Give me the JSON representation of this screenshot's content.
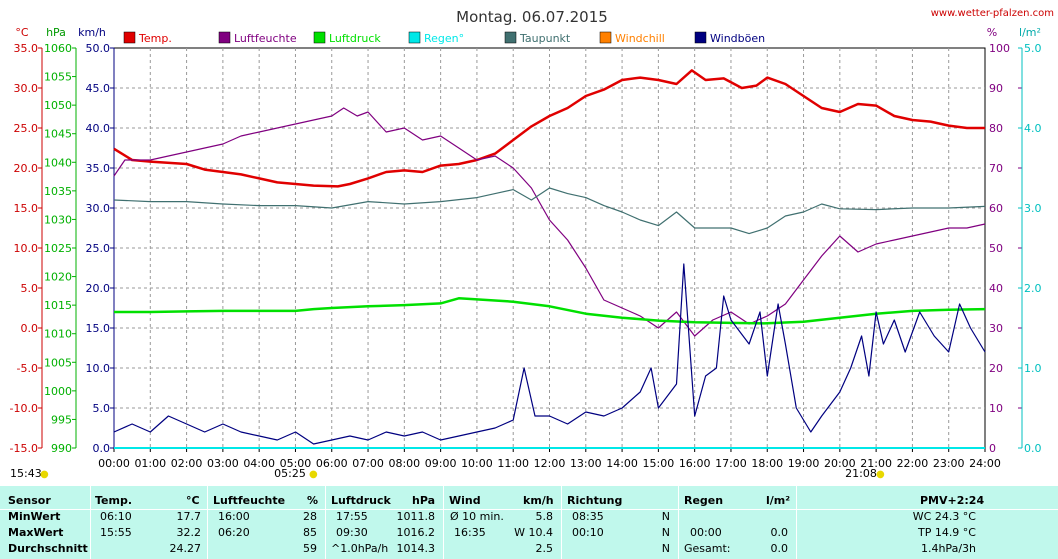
{
  "header": {
    "title": "Montag. 06.07.2015",
    "site": "www.wetter-pfalzen.com"
  },
  "units": {
    "temp": "°C",
    "press": "hPa",
    "wind": "km/h",
    "hum": "%",
    "rain": "l/m²"
  },
  "legend": [
    {
      "label": "Temp.",
      "color": "#e00000"
    },
    {
      "label": "Luftfeuchte",
      "color": "#800080"
    },
    {
      "label": "Luftdruck",
      "color": "#00e000"
    },
    {
      "label": "Regen°",
      "color": "#00e8e8"
    },
    {
      "label": "Taupunkt",
      "color": "#407070"
    },
    {
      "label": "Windchill",
      "color": "#ff8000"
    },
    {
      "label": "Windböen",
      "color": "#000080"
    }
  ],
  "axes": {
    "temp_ticks": [
      "35.0",
      "30.0",
      "25.0",
      "20.0",
      "15.0",
      "10.0",
      "5.0",
      "0.0",
      "-5.0",
      "-10.0",
      "-15.0"
    ],
    "press_ticks": [
      "1060",
      "1055",
      "1050",
      "1045",
      "1040",
      "1035",
      "1030",
      "1025",
      "1020",
      "1015",
      "1010",
      "1005",
      "1000",
      "995",
      "990"
    ],
    "wind_ticks": [
      "50.0",
      "45.0",
      "40.0",
      "35.0",
      "30.0",
      "25.0",
      "20.0",
      "15.0",
      "10.0",
      "5.0",
      "0.0"
    ],
    "hum_ticks": [
      "100",
      "90",
      "80",
      "70",
      "60",
      "50",
      "40",
      "30",
      "20",
      "10",
      "0"
    ],
    "rain_ticks": [
      "5.0",
      "4.0",
      "3.0",
      "2.0",
      "1.0",
      "0.0"
    ],
    "time_ticks": [
      "00:00",
      "01:00",
      "02:00",
      "03:00",
      "04:00",
      "05:00",
      "06:00",
      "07:00",
      "08:00",
      "09:00",
      "10:00",
      "11:00",
      "12:00",
      "13:00",
      "14:00",
      "15:00",
      "16:00",
      "17:00",
      "18:00",
      "19:00",
      "20:00",
      "21:00",
      "22:00",
      "23:00",
      "24:00"
    ]
  },
  "markers": {
    "sunrise": "05:25",
    "sunset": "21:08",
    "left_time": "15:43"
  },
  "stats": {
    "headers": {
      "sensor": "Sensor",
      "temp": "Temp.",
      "temp_unit": "°C",
      "hum": "Luftfeuchte",
      "hum_unit": "%",
      "press": "Luftdruck",
      "press_unit": "hPa",
      "wind": "Wind",
      "wind_unit": "km/h",
      "dir": "Richtung",
      "rain": "Regen",
      "rain_unit": "l/m²",
      "pmv": "PMV+2:24"
    },
    "rows": [
      {
        "label": "MinWert",
        "temp_t": "06:10",
        "temp_v": "17.7",
        "hum_t": "16:00",
        "hum_v": "28",
        "press_t": "17:55",
        "press_v": "1011.8",
        "wind_t": "Ø 10 min.",
        "wind_v": "5.8",
        "dir_t": "08:35",
        "dir_v": "N",
        "rain_t": "",
        "rain_v": "",
        "extra": "WC 24.3 °C"
      },
      {
        "label": "MaxWert",
        "temp_t": "15:55",
        "temp_v": "32.2",
        "hum_t": "06:20",
        "hum_v": "85",
        "press_t": "09:30",
        "press_v": "1016.2",
        "wind_t": "16:35",
        "wind_v": "W 10.4",
        "dir_t": "00:10",
        "dir_v": "N",
        "rain_t": "00:00",
        "rain_v": "0.0",
        "extra": "TP 14.9 °C"
      },
      {
        "label": "Durchschnitt",
        "temp_t": "",
        "temp_v": "24.27",
        "hum_t": "",
        "hum_v": "59",
        "press_t": "^1.0hPa/h",
        "press_v": "1014.3",
        "wind_t": "",
        "wind_v": "2.5",
        "dir_t": "",
        "dir_v": "N",
        "rain_t": "Gesamt:",
        "rain_v": "0.0",
        "extra": "1.4hPa/3h"
      }
    ]
  },
  "chart_data": {
    "type": "line",
    "x_unit": "hour of day",
    "xlim": [
      0,
      24
    ],
    "series": [
      {
        "name": "Temp.",
        "axis": "°C",
        "ylim": [
          -15,
          35
        ],
        "color": "#e00000",
        "points": [
          [
            0,
            22.4
          ],
          [
            0.5,
            21
          ],
          [
            1,
            20.8
          ],
          [
            2,
            20.5
          ],
          [
            2.5,
            19.8
          ],
          [
            3,
            19.5
          ],
          [
            3.5,
            19.2
          ],
          [
            4,
            18.7
          ],
          [
            4.5,
            18.2
          ],
          [
            5,
            18
          ],
          [
            5.5,
            17.8
          ],
          [
            6.17,
            17.7
          ],
          [
            6.5,
            18
          ],
          [
            7,
            18.7
          ],
          [
            7.5,
            19.5
          ],
          [
            8,
            19.7
          ],
          [
            8.5,
            19.5
          ],
          [
            9,
            20.3
          ],
          [
            9.5,
            20.5
          ],
          [
            10,
            21
          ],
          [
            10.5,
            21.8
          ],
          [
            11,
            23.5
          ],
          [
            11.5,
            25.2
          ],
          [
            12,
            26.5
          ],
          [
            12.5,
            27.5
          ],
          [
            13,
            29
          ],
          [
            13.5,
            29.8
          ],
          [
            14,
            31
          ],
          [
            14.5,
            31.3
          ],
          [
            15,
            31
          ],
          [
            15.5,
            30.5
          ],
          [
            15.92,
            32.2
          ],
          [
            16.3,
            31
          ],
          [
            16.8,
            31.2
          ],
          [
            17.3,
            30
          ],
          [
            17.7,
            30.3
          ],
          [
            18,
            31.3
          ],
          [
            18.5,
            30.5
          ],
          [
            19,
            29
          ],
          [
            19.5,
            27.5
          ],
          [
            20,
            27
          ],
          [
            20.5,
            28
          ],
          [
            21,
            27.8
          ],
          [
            21.5,
            26.5
          ],
          [
            22,
            26
          ],
          [
            22.5,
            25.8
          ],
          [
            23,
            25.3
          ],
          [
            23.5,
            25
          ],
          [
            24,
            25
          ]
        ]
      },
      {
        "name": "Luftfeuchte",
        "axis": "%",
        "ylim": [
          0,
          100
        ],
        "color": "#800080",
        "points": [
          [
            0,
            68
          ],
          [
            0.3,
            72
          ],
          [
            1,
            72
          ],
          [
            1.5,
            73
          ],
          [
            2,
            74
          ],
          [
            2.5,
            75
          ],
          [
            3,
            76
          ],
          [
            3.5,
            78
          ],
          [
            4,
            79
          ],
          [
            4.5,
            80
          ],
          [
            5,
            81
          ],
          [
            5.5,
            82
          ],
          [
            6,
            83
          ],
          [
            6.33,
            85
          ],
          [
            6.7,
            83
          ],
          [
            7,
            84
          ],
          [
            7.5,
            79
          ],
          [
            8,
            80
          ],
          [
            8.5,
            77
          ],
          [
            9,
            78
          ],
          [
            9.5,
            75
          ],
          [
            10,
            72
          ],
          [
            10.5,
            73
          ],
          [
            11,
            70
          ],
          [
            11.5,
            65
          ],
          [
            12,
            57
          ],
          [
            12.5,
            52
          ],
          [
            13,
            45
          ],
          [
            13.5,
            37
          ],
          [
            14,
            35
          ],
          [
            14.5,
            33
          ],
          [
            15,
            30
          ],
          [
            15.5,
            34
          ],
          [
            16,
            28
          ],
          [
            16.5,
            32
          ],
          [
            17,
            34
          ],
          [
            17.5,
            31
          ],
          [
            18,
            33
          ],
          [
            18.5,
            36
          ],
          [
            19,
            42
          ],
          [
            19.5,
            48
          ],
          [
            20,
            53
          ],
          [
            20.5,
            49
          ],
          [
            21,
            51
          ],
          [
            21.5,
            52
          ],
          [
            22,
            53
          ],
          [
            22.5,
            54
          ],
          [
            23,
            55
          ],
          [
            23.5,
            55
          ],
          [
            24,
            56
          ]
        ]
      },
      {
        "name": "Luftdruck",
        "axis": "hPa",
        "ylim": [
          990,
          1060
        ],
        "color": "#00e000",
        "points": [
          [
            0,
            1013.8
          ],
          [
            1,
            1013.8
          ],
          [
            2,
            1013.9
          ],
          [
            3,
            1014
          ],
          [
            4,
            1014
          ],
          [
            5,
            1014
          ],
          [
            5.5,
            1014.3
          ],
          [
            6,
            1014.5
          ],
          [
            7,
            1014.8
          ],
          [
            8,
            1015
          ],
          [
            9,
            1015.3
          ],
          [
            9.5,
            1016.2
          ],
          [
            10,
            1016
          ],
          [
            11,
            1015.6
          ],
          [
            12,
            1014.8
          ],
          [
            13,
            1013.5
          ],
          [
            14,
            1012.8
          ],
          [
            15,
            1012.3
          ],
          [
            16,
            1012
          ],
          [
            17,
            1011.9
          ],
          [
            17.92,
            1011.8
          ],
          [
            19,
            1012.1
          ],
          [
            20,
            1012.8
          ],
          [
            21,
            1013.5
          ],
          [
            22,
            1014
          ],
          [
            23,
            1014.2
          ],
          [
            24,
            1014.3
          ]
        ]
      },
      {
        "name": "Regen°",
        "axis": "l/m²",
        "ylim": [
          0,
          5
        ],
        "color": "#00e8e8",
        "points": [
          [
            0,
            0
          ],
          [
            24,
            0
          ]
        ]
      },
      {
        "name": "Taupunkt",
        "axis": "°C",
        "ylim": [
          -15,
          35
        ],
        "color": "#407070",
        "points": [
          [
            0,
            16
          ],
          [
            1,
            15.8
          ],
          [
            2,
            15.8
          ],
          [
            3,
            15.5
          ],
          [
            4,
            15.3
          ],
          [
            5,
            15.3
          ],
          [
            6,
            15
          ],
          [
            7,
            15.8
          ],
          [
            8,
            15.5
          ],
          [
            9,
            15.8
          ],
          [
            10,
            16.3
          ],
          [
            10.5,
            16.8
          ],
          [
            11,
            17.3
          ],
          [
            11.5,
            16
          ],
          [
            12,
            17.5
          ],
          [
            12.5,
            16.8
          ],
          [
            13,
            16.3
          ],
          [
            13.5,
            15.3
          ],
          [
            14,
            14.5
          ],
          [
            14.5,
            13.5
          ],
          [
            15,
            12.8
          ],
          [
            15.5,
            14.5
          ],
          [
            16,
            12.5
          ],
          [
            16.5,
            12.5
          ],
          [
            17,
            12.5
          ],
          [
            17.5,
            11.8
          ],
          [
            18,
            12.5
          ],
          [
            18.5,
            14
          ],
          [
            19,
            14.5
          ],
          [
            19.5,
            15.5
          ],
          [
            20,
            14.9
          ],
          [
            21,
            14.8
          ],
          [
            22,
            15
          ],
          [
            23,
            15
          ],
          [
            24,
            15.2
          ]
        ]
      },
      {
        "name": "Windchill",
        "axis": "°C",
        "ylim": [
          -15,
          35
        ],
        "color": "#ff8000",
        "points": []
      },
      {
        "name": "Windböen",
        "axis": "km/h",
        "ylim": [
          0,
          50
        ],
        "color": "#000080",
        "points": [
          [
            0,
            2
          ],
          [
            0.5,
            3
          ],
          [
            1,
            2
          ],
          [
            1.5,
            4
          ],
          [
            2,
            3
          ],
          [
            2.5,
            2
          ],
          [
            3,
            3
          ],
          [
            3.5,
            2
          ],
          [
            4,
            1.5
          ],
          [
            4.5,
            1
          ],
          [
            5,
            2
          ],
          [
            5.5,
            0.5
          ],
          [
            6,
            1
          ],
          [
            6.5,
            1.5
          ],
          [
            7,
            1
          ],
          [
            7.5,
            2
          ],
          [
            8,
            1.5
          ],
          [
            8.5,
            2
          ],
          [
            9,
            1
          ],
          [
            9.5,
            1.5
          ],
          [
            10,
            2
          ],
          [
            10.5,
            2.5
          ],
          [
            11,
            3.5
          ],
          [
            11.3,
            10
          ],
          [
            11.6,
            4
          ],
          [
            12,
            4
          ],
          [
            12.5,
            3
          ],
          [
            13,
            4.5
          ],
          [
            13.5,
            4
          ],
          [
            14,
            5
          ],
          [
            14.5,
            7
          ],
          [
            14.8,
            10
          ],
          [
            15,
            5
          ],
          [
            15.5,
            8
          ],
          [
            15.7,
            23
          ],
          [
            16,
            4
          ],
          [
            16.3,
            9
          ],
          [
            16.6,
            10
          ],
          [
            16.8,
            19
          ],
          [
            17,
            16
          ],
          [
            17.5,
            13
          ],
          [
            17.8,
            17
          ],
          [
            18,
            9
          ],
          [
            18.3,
            18
          ],
          [
            18.5,
            13
          ],
          [
            18.8,
            5
          ],
          [
            19.2,
            2
          ],
          [
            19.5,
            4
          ],
          [
            20,
            7
          ],
          [
            20.3,
            10
          ],
          [
            20.6,
            14
          ],
          [
            20.8,
            9
          ],
          [
            21,
            17
          ],
          [
            21.2,
            13
          ],
          [
            21.5,
            16
          ],
          [
            21.8,
            12
          ],
          [
            22.2,
            17
          ],
          [
            22.6,
            14
          ],
          [
            23,
            12
          ],
          [
            23.3,
            18
          ],
          [
            23.6,
            15
          ],
          [
            24,
            12
          ]
        ]
      }
    ]
  }
}
